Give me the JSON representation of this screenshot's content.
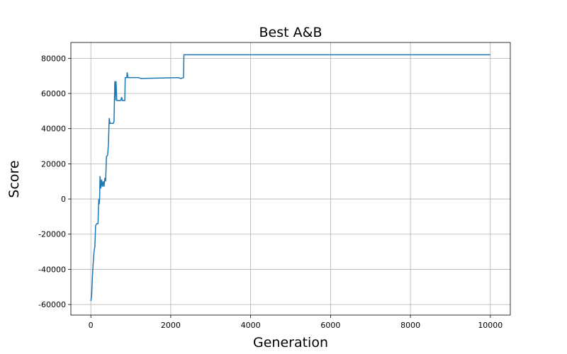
{
  "chart_data": {
    "type": "line",
    "title": "Best A&B",
    "xlabel": "Generation",
    "ylabel": "Score",
    "x": [
      0,
      20,
      40,
      60,
      80,
      100,
      120,
      150,
      180,
      190,
      200,
      210,
      220,
      230,
      250,
      270,
      290,
      310,
      330,
      350,
      370,
      390,
      420,
      440,
      460,
      480,
      560,
      580,
      600,
      610,
      630,
      650,
      750,
      770,
      790,
      850,
      860,
      900,
      910,
      930,
      1200,
      1250,
      2200,
      2250,
      2320,
      2330,
      10000
    ],
    "series": [
      {
        "name": "Score",
        "color": "#1f77b4",
        "values": [
          -58000,
          -55000,
          -44000,
          -36000,
          -30000,
          -27000,
          -15000,
          -14000,
          -14000,
          -5000,
          0,
          -3000,
          1000,
          13000,
          6000,
          11000,
          7000,
          10000,
          7000,
          12000,
          10000,
          24000,
          25000,
          31000,
          46000,
          43000,
          43000,
          44000,
          67000,
          56000,
          67000,
          56000,
          56000,
          58000,
          56000,
          56000,
          69000,
          69000,
          72000,
          69000,
          69000,
          68500,
          69000,
          68500,
          69000,
          82000,
          82000
        ]
      }
    ],
    "xlim": [
      -500,
      10500
    ],
    "xticks": [
      0,
      2000,
      4000,
      6000,
      8000,
      10000
    ],
    "ylim": [
      -66000,
      89000
    ],
    "yticks": [
      -60000,
      -40000,
      -20000,
      0,
      20000,
      40000,
      60000,
      80000
    ],
    "grid": true
  }
}
